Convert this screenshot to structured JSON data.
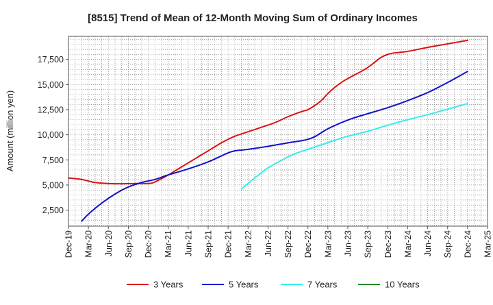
{
  "chart_data": {
    "type": "line",
    "title": "[8515]  Trend of Mean of 12-Month Moving Sum of Ordinary Incomes",
    "xlabel": "",
    "ylabel": "Amount (million yen)",
    "ylim": [
      900,
      19800
    ],
    "yticks": [
      2500,
      5000,
      7500,
      10000,
      12500,
      15000,
      17500
    ],
    "ytick_labels": [
      "2,500",
      "5,000",
      "7,500",
      "10,000",
      "12,500",
      "15,000",
      "17,500"
    ],
    "x_range_months": [
      0,
      63
    ],
    "xticks": [
      {
        "m": 0,
        "label": "Dec-19"
      },
      {
        "m": 3,
        "label": "Mar-20"
      },
      {
        "m": 6,
        "label": "Jun-20"
      },
      {
        "m": 9,
        "label": "Sep-20"
      },
      {
        "m": 12,
        "label": "Dec-20"
      },
      {
        "m": 15,
        "label": "Mar-21"
      },
      {
        "m": 18,
        "label": "Jun-21"
      },
      {
        "m": 21,
        "label": "Sep-21"
      },
      {
        "m": 24,
        "label": "Dec-21"
      },
      {
        "m": 27,
        "label": "Mar-22"
      },
      {
        "m": 30,
        "label": "Jun-22"
      },
      {
        "m": 33,
        "label": "Sep-22"
      },
      {
        "m": 36,
        "label": "Dec-22"
      },
      {
        "m": 39,
        "label": "Mar-23"
      },
      {
        "m": 42,
        "label": "Jun-23"
      },
      {
        "m": 45,
        "label": "Sep-23"
      },
      {
        "m": 48,
        "label": "Dec-23"
      },
      {
        "m": 51,
        "label": "Mar-24"
      },
      {
        "m": 54,
        "label": "Jun-24"
      },
      {
        "m": 57,
        "label": "Sep-24"
      },
      {
        "m": 60,
        "label": "Dec-24"
      },
      {
        "m": 63,
        "label": "Mar-25"
      }
    ],
    "grid": true,
    "legend_position": "bottom",
    "series": [
      {
        "name": "3 Years",
        "color": "#dd1111",
        "points": [
          [
            0,
            5700
          ],
          [
            2,
            5550
          ],
          [
            4,
            5250
          ],
          [
            6,
            5150
          ],
          [
            8,
            5120
          ],
          [
            10,
            5150
          ],
          [
            12,
            5150
          ],
          [
            13,
            5300
          ],
          [
            15,
            6000
          ],
          [
            17,
            6800
          ],
          [
            19,
            7600
          ],
          [
            21,
            8400
          ],
          [
            23,
            9200
          ],
          [
            25,
            9850
          ],
          [
            27,
            10300
          ],
          [
            29,
            10750
          ],
          [
            31,
            11200
          ],
          [
            33,
            11800
          ],
          [
            35,
            12300
          ],
          [
            36,
            12500
          ],
          [
            37,
            12900
          ],
          [
            38,
            13400
          ],
          [
            39,
            14100
          ],
          [
            40,
            14700
          ],
          [
            41,
            15200
          ],
          [
            42,
            15600
          ],
          [
            43,
            15950
          ],
          [
            44,
            16300
          ],
          [
            45,
            16700
          ],
          [
            46,
            17200
          ],
          [
            47,
            17700
          ],
          [
            48,
            18000
          ],
          [
            49,
            18150
          ],
          [
            51,
            18300
          ],
          [
            54,
            18700
          ],
          [
            57,
            19050
          ],
          [
            60,
            19400
          ]
        ]
      },
      {
        "name": "5 Years",
        "color": "#1111cc",
        "points": [
          [
            2,
            1400
          ],
          [
            3,
            2100
          ],
          [
            5,
            3200
          ],
          [
            7,
            4100
          ],
          [
            9,
            4800
          ],
          [
            11,
            5250
          ],
          [
            13,
            5550
          ],
          [
            15,
            6000
          ],
          [
            18,
            6600
          ],
          [
            21,
            7300
          ],
          [
            23,
            7900
          ],
          [
            24,
            8200
          ],
          [
            25,
            8400
          ],
          [
            27,
            8550
          ],
          [
            30,
            8850
          ],
          [
            33,
            9200
          ],
          [
            35,
            9400
          ],
          [
            36,
            9550
          ],
          [
            37,
            9800
          ],
          [
            38,
            10200
          ],
          [
            39,
            10600
          ],
          [
            41,
            11200
          ],
          [
            43,
            11700
          ],
          [
            45,
            12100
          ],
          [
            48,
            12700
          ],
          [
            51,
            13400
          ],
          [
            54,
            14200
          ],
          [
            57,
            15200
          ],
          [
            60,
            16300
          ]
        ]
      },
      {
        "name": "7 Years",
        "color": "#33eeee",
        "points": [
          [
            26,
            4600
          ],
          [
            28,
            5700
          ],
          [
            30,
            6700
          ],
          [
            32,
            7450
          ],
          [
            34,
            8100
          ],
          [
            36,
            8550
          ],
          [
            38,
            9000
          ],
          [
            40,
            9450
          ],
          [
            42,
            9850
          ],
          [
            45,
            10350
          ],
          [
            48,
            10950
          ],
          [
            51,
            11500
          ],
          [
            54,
            12000
          ],
          [
            57,
            12550
          ],
          [
            60,
            13100
          ]
        ]
      },
      {
        "name": "10 Years",
        "color": "#228822",
        "points": []
      }
    ]
  }
}
